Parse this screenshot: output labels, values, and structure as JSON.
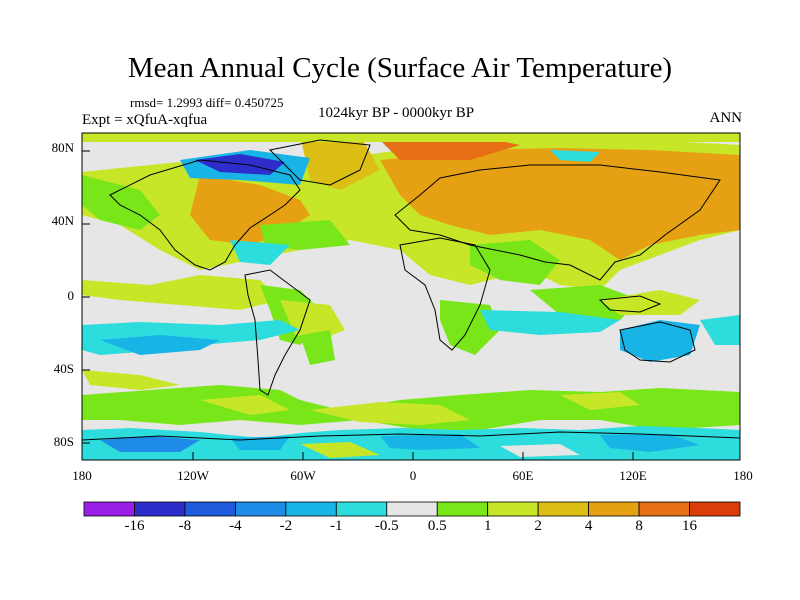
{
  "title": "Mean Annual Cycle (Surface Air Temperature)",
  "stats": "rmsd= 1.2993 diff= 0.450725",
  "period": "1024kyr BP - 0000kyr BP",
  "expt": "Expt = xQfuA-xqfua",
  "season": "ANN",
  "lat_ticks": [
    "80N",
    "40N",
    "0",
    "40S",
    "80S"
  ],
  "lon_ticks": [
    "180",
    "120W",
    "60W",
    "0",
    "60E",
    "120E",
    "180"
  ],
  "colorbar": {
    "colors": [
      "#9a1ee6",
      "#2d2dcc",
      "#1e5adc",
      "#1e8ce6",
      "#19b4e6",
      "#2ddcdc",
      "#e6e6e6",
      "#78e619",
      "#c8e628",
      "#dcbe14",
      "#e6a014",
      "#e66e14",
      "#dc3c0a"
    ],
    "labels": [
      "-16",
      "-8",
      "-4",
      "-2",
      "-1",
      "-0.5",
      "0.5",
      "1",
      "2",
      "4",
      "8",
      "16"
    ]
  },
  "palette": {
    "neutral": "#e6e6e6",
    "green": "#78e619",
    "yellowgreen": "#c8e628",
    "gold": "#dcbe14",
    "orange": "#e6a014",
    "darkorange": "#e66e14",
    "cyan": "#2ddcdc",
    "skyblue": "#19b4e6",
    "blue": "#1e8ce6",
    "darkblue": "#2d2dcc"
  }
}
